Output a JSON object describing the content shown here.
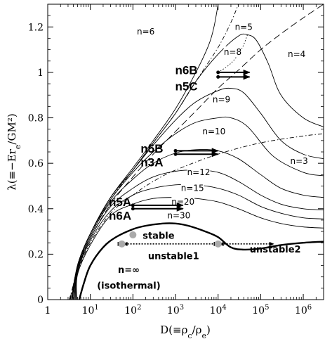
{
  "chart_data": {
    "type": "line",
    "xscale": "log",
    "xlim": [
      1,
      3000000
    ],
    "ylim": [
      0,
      1.3
    ],
    "ylabel": "λ(≡−Er_e/GM²)",
    "xlabel": "D(≡ρ_c/ρ_e)",
    "x_ticks": [
      {
        "value": 1,
        "label": "1"
      },
      {
        "value": 10,
        "label": "10",
        "sup": "1"
      },
      {
        "value": 100,
        "label": "10",
        "sup": "2"
      },
      {
        "value": 1000,
        "label": "10",
        "sup": "3"
      },
      {
        "value": 10000,
        "label": "10",
        "sup": "4"
      },
      {
        "value": 100000,
        "label": "10",
        "sup": "5"
      },
      {
        "value": 1000000,
        "label": "10",
        "sup": "6"
      }
    ],
    "y_ticks": [
      {
        "value": 0,
        "label": "0"
      },
      {
        "value": 0.2,
        "label": "0.2"
      },
      {
        "value": 0.4,
        "label": "0.4"
      },
      {
        "value": 0.6,
        "label": "0.6"
      },
      {
        "value": 0.8,
        "label": "0.8"
      },
      {
        "value": 1.0,
        "label": "1"
      },
      {
        "value": 1.2,
        "label": "1.2"
      }
    ],
    "series": [
      {
        "name": "n=3",
        "style": "dashdot",
        "label": {
          "text": "n=3",
          "x": 800000,
          "y": 0.61
        },
        "points": [
          [
            3.2,
            0.0
          ],
          [
            5,
            0.12
          ],
          [
            10,
            0.25
          ],
          [
            30,
            0.38
          ],
          [
            100,
            0.46
          ],
          [
            300,
            0.52
          ],
          [
            1000,
            0.57
          ],
          [
            10000,
            0.64
          ],
          [
            100000,
            0.69
          ],
          [
            1000000,
            0.72
          ],
          [
            3000000,
            0.73
          ]
        ]
      },
      {
        "name": "n=4",
        "style": "longdash",
        "label": {
          "text": "n=4",
          "x": 700000,
          "y": 1.08
        },
        "points": [
          [
            3.3,
            0.0
          ],
          [
            5,
            0.13
          ],
          [
            10,
            0.27
          ],
          [
            30,
            0.42
          ],
          [
            100,
            0.54
          ],
          [
            300,
            0.64
          ],
          [
            1000,
            0.74
          ],
          [
            3000,
            0.83
          ],
          [
            10000,
            0.93
          ],
          [
            30000,
            1.01
          ],
          [
            100000,
            1.1
          ],
          [
            300000,
            1.17
          ],
          [
            1000000,
            1.24
          ],
          [
            3000000,
            1.3
          ]
        ]
      },
      {
        "name": "n=5",
        "style": "dashdot",
        "label": {
          "text": "n=5",
          "x": 40000,
          "y": 1.2
        },
        "points": [
          [
            3.4,
            0.0
          ],
          [
            5,
            0.14
          ],
          [
            10,
            0.28
          ],
          [
            30,
            0.44
          ],
          [
            100,
            0.57
          ],
          [
            300,
            0.69
          ],
          [
            1000,
            0.82
          ],
          [
            3000,
            0.96
          ],
          [
            10000,
            1.11
          ],
          [
            20000,
            1.22
          ],
          [
            30000,
            1.3
          ]
        ]
      },
      {
        "name": "n=6",
        "style": "solid",
        "label": {
          "text": "n=6",
          "x": 200,
          "y": 1.18
        },
        "points": [
          [
            3.6,
            0.0
          ],
          [
            5,
            0.15
          ],
          [
            10,
            0.29
          ],
          [
            30,
            0.45
          ],
          [
            100,
            0.58
          ],
          [
            300,
            0.7
          ],
          [
            1000,
            0.84
          ],
          [
            3000,
            1.0
          ],
          [
            6000,
            1.12
          ],
          [
            8000,
            1.2
          ],
          [
            10000,
            1.3
          ]
        ]
      },
      {
        "name": "n=8",
        "style": "solid",
        "label": {
          "text": "n=8",
          "x": 22000,
          "y": 1.09
        },
        "points": [
          [
            3.7,
            0.0
          ],
          [
            5,
            0.15
          ],
          [
            10,
            0.29
          ],
          [
            30,
            0.45
          ],
          [
            100,
            0.57
          ],
          [
            300,
            0.69
          ],
          [
            1000,
            0.82
          ],
          [
            3000,
            0.96
          ],
          [
            10000,
            1.08
          ],
          [
            30000,
            1.16
          ],
          [
            50000,
            1.165
          ],
          [
            80000,
            1.14
          ],
          [
            150000,
            1.04
          ],
          [
            300000,
            0.9
          ],
          [
            1000000,
            0.8
          ],
          [
            3000000,
            0.76
          ]
        ]
      },
      {
        "name": "n=9",
        "style": "solid",
        "label": {
          "text": "n=9",
          "x": 12000,
          "y": 0.88
        },
        "points": [
          [
            3.8,
            0.0
          ],
          [
            5,
            0.15
          ],
          [
            10,
            0.29
          ],
          [
            30,
            0.45
          ],
          [
            100,
            0.57
          ],
          [
            300,
            0.68
          ],
          [
            1000,
            0.79
          ],
          [
            3000,
            0.87
          ],
          [
            10000,
            0.92
          ],
          [
            20000,
            0.93
          ],
          [
            40000,
            0.91
          ],
          [
            100000,
            0.82
          ],
          [
            300000,
            0.7
          ],
          [
            1000000,
            0.64
          ],
          [
            3000000,
            0.62
          ]
        ]
      },
      {
        "name": "n=10",
        "style": "solid",
        "label": {
          "text": "n=10",
          "x": 8000,
          "y": 0.74
        },
        "points": [
          [
            4.0,
            0.0
          ],
          [
            5,
            0.15
          ],
          [
            10,
            0.29
          ],
          [
            30,
            0.44
          ],
          [
            100,
            0.56
          ],
          [
            300,
            0.65
          ],
          [
            1000,
            0.73
          ],
          [
            3000,
            0.78
          ],
          [
            10000,
            0.8
          ],
          [
            20000,
            0.8
          ],
          [
            50000,
            0.76
          ],
          [
            200000,
            0.63
          ],
          [
            1000000,
            0.56
          ],
          [
            3000000,
            0.545
          ]
        ]
      },
      {
        "name": "n=12",
        "style": "solid",
        "label": {
          "text": "n=12",
          "x": 3500,
          "y": 0.56
        },
        "points": [
          [
            4.2,
            0.0
          ],
          [
            5,
            0.14
          ],
          [
            10,
            0.28
          ],
          [
            30,
            0.43
          ],
          [
            100,
            0.53
          ],
          [
            300,
            0.6
          ],
          [
            1000,
            0.645
          ],
          [
            3000,
            0.66
          ],
          [
            10000,
            0.655
          ],
          [
            30000,
            0.62
          ],
          [
            100000,
            0.55
          ],
          [
            300000,
            0.49
          ],
          [
            1000000,
            0.46
          ],
          [
            3000000,
            0.45
          ]
        ]
      },
      {
        "name": "n=15",
        "style": "solid",
        "label": {
          "text": "n=15",
          "x": 2500,
          "y": 0.49
        },
        "points": [
          [
            4.4,
            0.0
          ],
          [
            5,
            0.13
          ],
          [
            10,
            0.27
          ],
          [
            30,
            0.41
          ],
          [
            100,
            0.49
          ],
          [
            300,
            0.54
          ],
          [
            1000,
            0.565
          ],
          [
            3000,
            0.57
          ],
          [
            10000,
            0.56
          ],
          [
            30000,
            0.52
          ],
          [
            100000,
            0.46
          ],
          [
            300000,
            0.42
          ],
          [
            1000000,
            0.4
          ],
          [
            3000000,
            0.395
          ]
        ]
      },
      {
        "name": "n=20",
        "style": "solid",
        "label": {
          "text": "n=20",
          "x": 1500,
          "y": 0.43
        },
        "points": [
          [
            4.6,
            0.0
          ],
          [
            5,
            0.12
          ],
          [
            10,
            0.26
          ],
          [
            30,
            0.39
          ],
          [
            100,
            0.46
          ],
          [
            300,
            0.49
          ],
          [
            1000,
            0.505
          ],
          [
            3000,
            0.505
          ],
          [
            10000,
            0.49
          ],
          [
            30000,
            0.46
          ],
          [
            100000,
            0.41
          ],
          [
            300000,
            0.38
          ],
          [
            1000000,
            0.36
          ],
          [
            3000000,
            0.355
          ]
        ]
      },
      {
        "name": "n=30",
        "style": "solid",
        "label": {
          "text": "n=30",
          "x": 1200,
          "y": 0.37
        },
        "points": [
          [
            4.8,
            0.0
          ],
          [
            5,
            0.11
          ],
          [
            10,
            0.24
          ],
          [
            30,
            0.37
          ],
          [
            100,
            0.42
          ],
          [
            300,
            0.445
          ],
          [
            1000,
            0.45
          ],
          [
            3000,
            0.445
          ],
          [
            10000,
            0.43
          ],
          [
            30000,
            0.4
          ],
          [
            100000,
            0.36
          ],
          [
            300000,
            0.335
          ],
          [
            1000000,
            0.32
          ],
          [
            3000000,
            0.315
          ]
        ]
      },
      {
        "name": "n=∞",
        "style": "bold",
        "label": {
          "text": "n=∞",
          "x": 80,
          "y": 0.13
        },
        "points": [
          [
            5.5,
            0.0
          ],
          [
            7,
            0.07
          ],
          [
            10,
            0.15
          ],
          [
            20,
            0.23
          ],
          [
            40,
            0.275
          ],
          [
            100,
            0.31
          ],
          [
            200,
            0.325
          ],
          [
            500,
            0.335
          ],
          [
            1000,
            0.335
          ],
          [
            2000,
            0.325
          ],
          [
            5000,
            0.3
          ],
          [
            10000,
            0.275
          ],
          [
            20000,
            0.23
          ],
          [
            40000,
            0.22
          ],
          [
            100000,
            0.225
          ],
          [
            300000,
            0.24
          ],
          [
            1000000,
            0.25
          ],
          [
            3000000,
            0.255
          ]
        ]
      }
    ],
    "dotted_curve": [
      [
        10000,
        1.0
      ],
      [
        20000,
        1.04
      ],
      [
        35000,
        1.1
      ],
      [
        50000,
        1.17
      ]
    ],
    "extra_labels": [
      {
        "text": "(isothermal)",
        "x": 80,
        "y": 0.06,
        "style": "region"
      }
    ],
    "region_labels": [
      {
        "text": "stable",
        "x": 400,
        "y": 0.28
      },
      {
        "text": "unstable1",
        "x": 900,
        "y": 0.19
      },
      {
        "text": "unstable2",
        "x": 220000,
        "y": 0.22
      }
    ],
    "model_labels": [
      {
        "text": "n6B",
        "x": 1800,
        "y": 1.01
      },
      {
        "text": "n5C",
        "x": 1800,
        "y": 0.94
      },
      {
        "text": "n5B",
        "x": 280,
        "y": 0.665
      },
      {
        "text": "n3A",
        "x": 280,
        "y": 0.605
      },
      {
        "text": "n5A",
        "x": 50,
        "y": 0.43
      },
      {
        "text": "n6A",
        "x": 50,
        "y": 0.37
      }
    ],
    "arrows": [
      {
        "from": [
          10000,
          1.0
        ],
        "to": [
          55000,
          1.0
        ]
      },
      {
        "from": [
          10000,
          0.98
        ],
        "to": [
          55000,
          0.98
        ]
      },
      {
        "from": [
          1000,
          0.655
        ],
        "to": [
          10000,
          0.655
        ]
      },
      {
        "from": [
          1000,
          0.64
        ],
        "to": [
          10000,
          0.64
        ]
      },
      {
        "from": [
          100,
          0.415
        ],
        "to": [
          1500,
          0.415
        ]
      },
      {
        "from": [
          100,
          0.4
        ],
        "to": [
          1500,
          0.4
        ]
      }
    ],
    "region_arrows": [
      {
        "from": [
          55,
          0.245
        ],
        "to": [
          10000,
          0.245
        ]
      },
      {
        "from": [
          10000,
          0.245
        ],
        "to": [
          200000,
          0.245
        ]
      }
    ],
    "points_gray": [
      [
        55,
        0.245
      ],
      [
        100,
        0.285
      ],
      [
        10000,
        0.245
      ]
    ]
  }
}
